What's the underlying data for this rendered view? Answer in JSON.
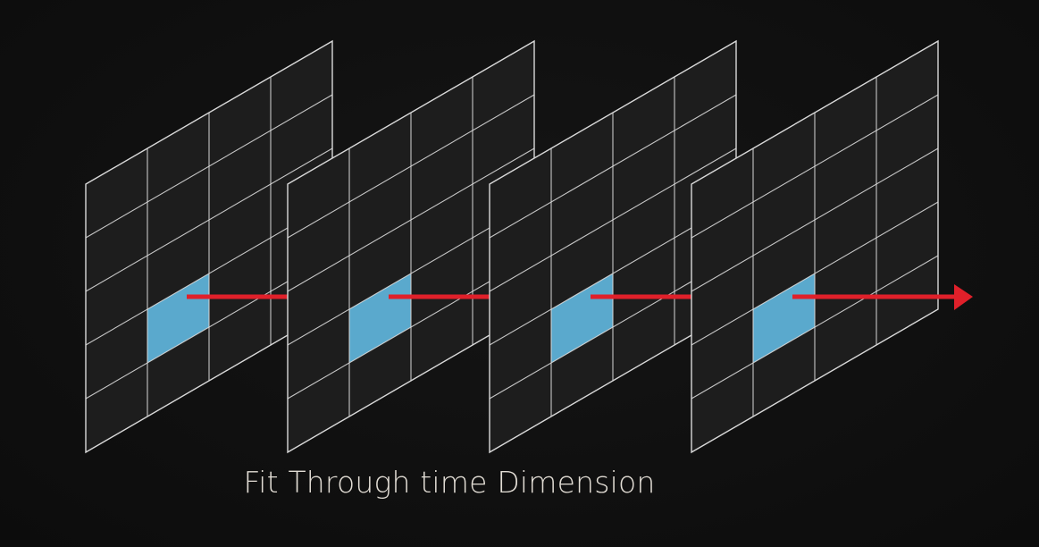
{
  "caption": "Fit Through time Dimension",
  "frame_count": 4,
  "grid_rows": 5,
  "grid_cols": 4,
  "highlighted_cell": {
    "row": 3,
    "col": 1
  },
  "colors": {
    "background": "#0e0e0e",
    "panel_fill": "#1d1d1d",
    "grid_line": "#d9d9d9",
    "highlight_fill": "#5aa9cd",
    "arrow": "#e0202a",
    "caption": "#e2ddd5"
  }
}
